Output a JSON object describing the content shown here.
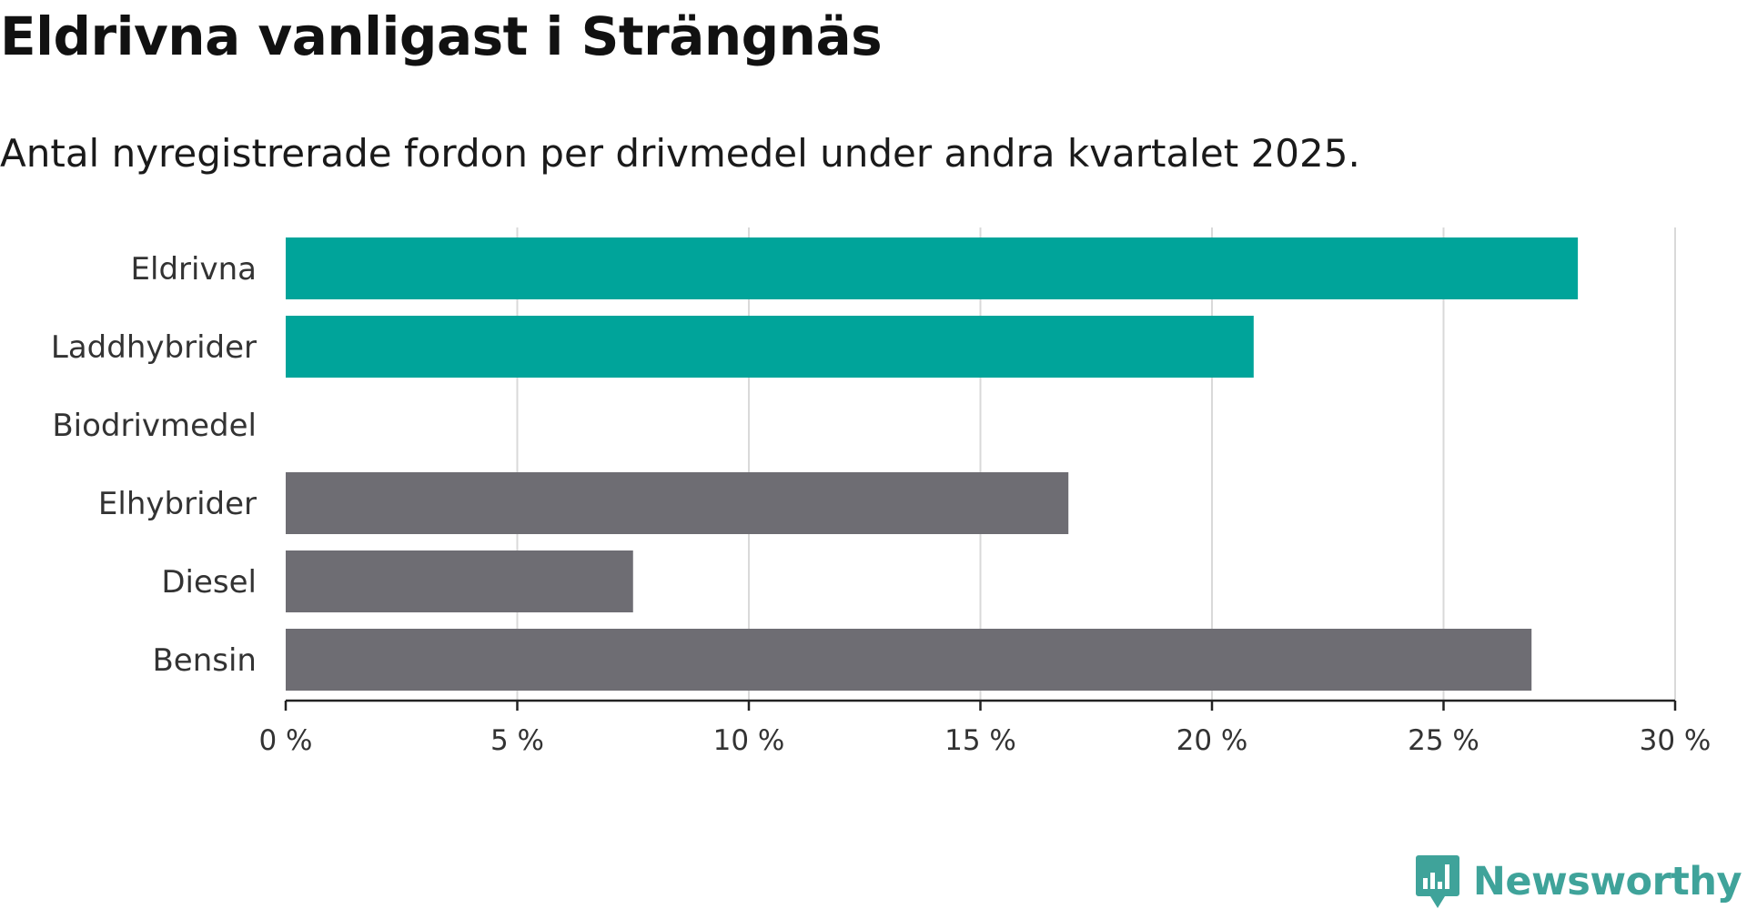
{
  "title": "Eldrivna vanligast i Strängnäs",
  "subtitle": "Antal nyregistrerade fordon per drivmedel under andra kvartalet 2025.",
  "brand": {
    "name": "Newsworthy",
    "color": "#3fa39a",
    "icon": "newsworthy-logo-icon"
  },
  "colors": {
    "highlight": "#00a49a",
    "other": "#6e6d73",
    "grid": "#d9d9d9",
    "axis": "#222222"
  },
  "chart_data": {
    "type": "bar",
    "orientation": "horizontal",
    "title": "Eldrivna vanligast i Strängnäs",
    "subtitle": "Antal nyregistrerade fordon per drivmedel under andra kvartalet 2025.",
    "categories": [
      "Eldrivna",
      "Laddhybrider",
      "Biodrivmedel",
      "Elhybrider",
      "Diesel",
      "Bensin"
    ],
    "values": [
      27.9,
      20.9,
      0,
      16.9,
      7.5,
      26.9
    ],
    "highlighted": [
      true,
      true,
      false,
      false,
      false,
      false
    ],
    "unit": "%",
    "xlim": [
      0,
      30
    ],
    "xticks": [
      0,
      5,
      10,
      15,
      20,
      25,
      30
    ],
    "xtick_labels": [
      "0 %",
      "5 %",
      "10 %",
      "15 %",
      "20 %",
      "25 %",
      "30 %"
    ],
    "xlabel": "",
    "ylabel": "",
    "grid": "vertical",
    "legend": "none"
  }
}
